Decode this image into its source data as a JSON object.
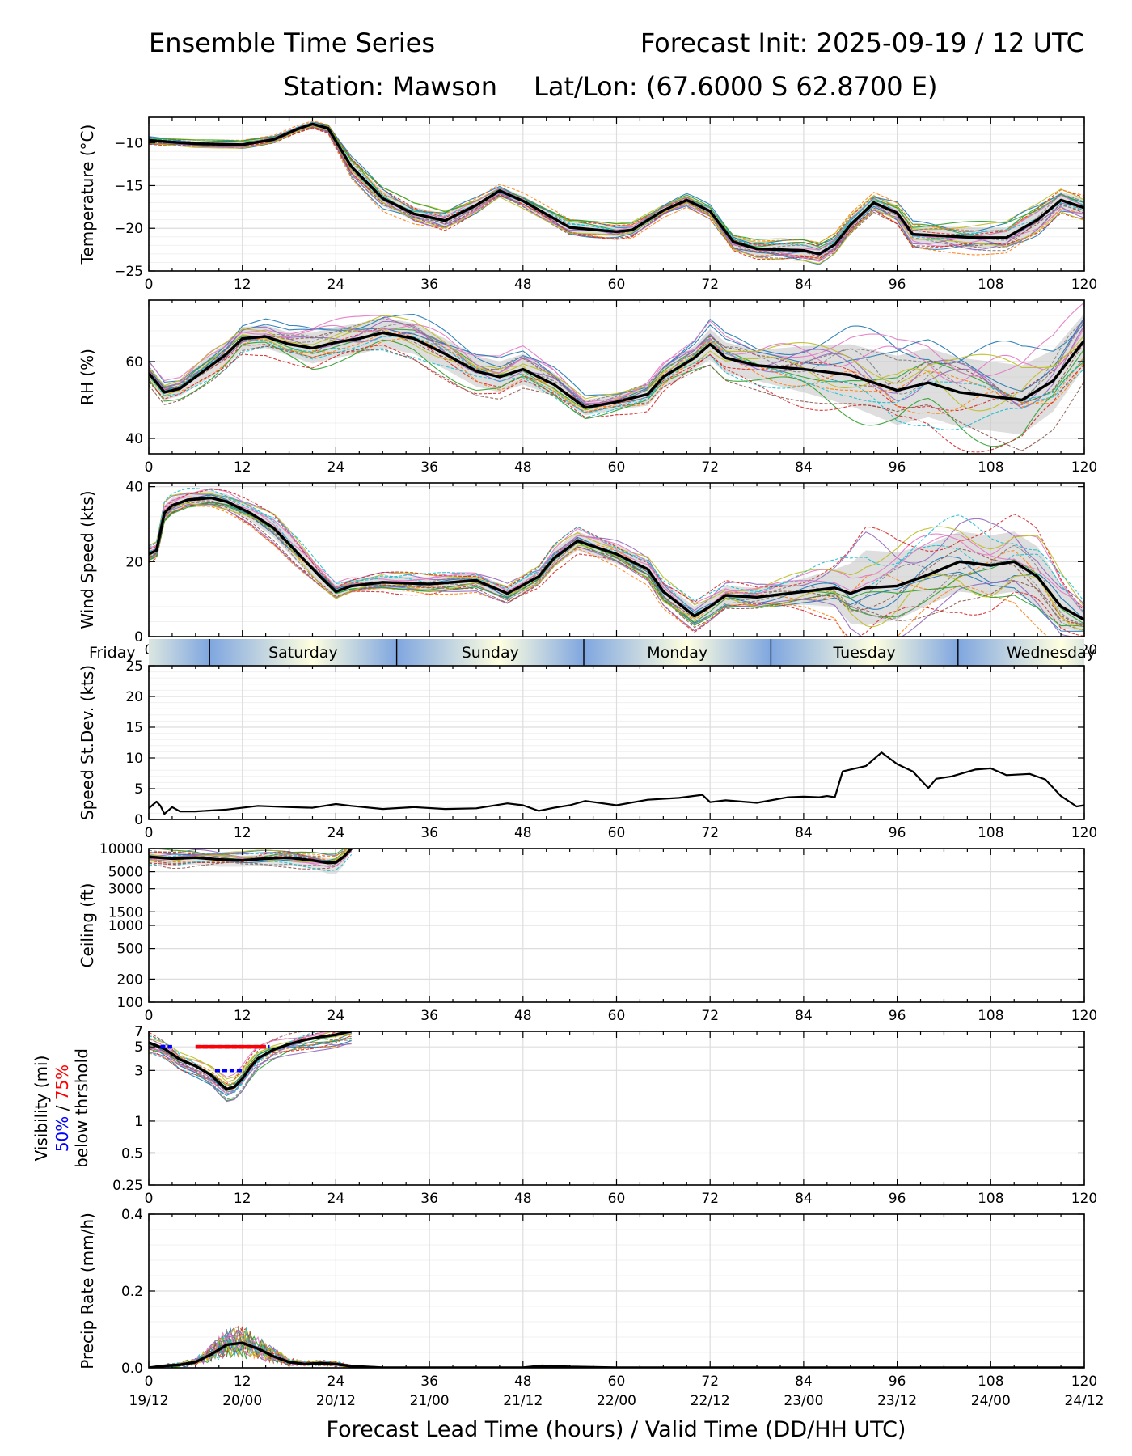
{
  "header": {
    "title_left": "Ensemble Time Series",
    "title_right": "Forecast Init: 2025-09-19 / 12 UTC",
    "station": "Station: Mawson",
    "latlon": "Lat/Lon: (67.6000 S 62.8700 E)"
  },
  "xaxis": {
    "range": [
      0,
      120
    ],
    "ticks": [
      0,
      12,
      24,
      36,
      48,
      60,
      72,
      84,
      96,
      108,
      120
    ],
    "tick_labels": [
      "0",
      "12",
      "24",
      "36",
      "48",
      "60",
      "72",
      "84",
      "96",
      "108",
      "120"
    ],
    "valid_labels": [
      "19/12",
      "20/00",
      "20/12",
      "21/00",
      "21/12",
      "22/00",
      "22/12",
      "23/00",
      "23/12",
      "24/00",
      "24/12"
    ],
    "label": "Forecast Lead Time (hours) / Valid Time (DD/HH UTC)"
  },
  "day_strip": {
    "days": [
      "Friday",
      "Saturday",
      "Sunday",
      "Monday",
      "Tuesday",
      "Wednesday"
    ],
    "midnight_hours": [
      7.8,
      31.8,
      55.8,
      79.8,
      103.8
    ],
    "label_hours": [
      -4,
      19.8,
      43.8,
      67.8,
      91.8,
      115.8
    ]
  },
  "colors": {
    "mean": "#000000",
    "spread": "#c8c8c8",
    "vis50": "#0000ff",
    "vis75": "#ff0000",
    "members": [
      "#1f77b4",
      "#ff7f0e",
      "#2ca02c",
      "#d62728",
      "#9467bd",
      "#8c564b",
      "#e377c2",
      "#7f7f7f",
      "#bcbd22",
      "#17becf"
    ]
  },
  "chart_data": [
    {
      "id": "temperature",
      "type": "line",
      "ylabel": "Temperature (°C)",
      "ylim": [
        -25,
        -7
      ],
      "yticks": [
        -25,
        -20,
        -15,
        -10
      ],
      "ytick_labels": [
        "−25",
        "−20",
        "−15",
        "−10"
      ],
      "grid": true,
      "x": [
        0,
        6,
        12,
        16,
        19,
        21,
        23,
        26,
        30,
        34,
        38,
        42,
        45,
        48,
        54,
        60,
        62,
        66,
        69,
        72,
        75,
        78,
        84,
        86,
        88,
        90,
        93,
        96,
        98,
        102,
        106,
        110,
        114,
        117,
        120
      ],
      "mean": [
        -9.7,
        -10.1,
        -10.2,
        -9.6,
        -8.4,
        -7.8,
        -8.3,
        -12.8,
        -16.5,
        -18.3,
        -19.1,
        -17.3,
        -15.6,
        -16.8,
        -19.9,
        -20.4,
        -20.2,
        -17.9,
        -16.7,
        -18.0,
        -21.6,
        -22.4,
        -22.6,
        -23.0,
        -21.9,
        -19.6,
        -17.0,
        -18.2,
        -20.7,
        -20.9,
        -21.1,
        -21.1,
        -19.0,
        -16.7,
        -17.6
      ],
      "spread": [
        0.3,
        0.3,
        0.3,
        0.3,
        0.3,
        0.3,
        0.4,
        0.8,
        0.9,
        0.8,
        0.8,
        0.6,
        0.5,
        0.6,
        0.6,
        0.6,
        0.6,
        0.5,
        0.5,
        0.6,
        0.8,
        0.8,
        0.8,
        0.8,
        0.8,
        0.8,
        0.8,
        0.9,
        1.0,
        1.1,
        1.2,
        1.2,
        1.2,
        1.0,
        1.0
      ]
    },
    {
      "id": "rh",
      "type": "line",
      "ylabel": "RH (%)",
      "ylim": [
        36,
        76
      ],
      "yticks": [
        40,
        60
      ],
      "ytick_labels": [
        "40",
        "60"
      ],
      "grid": true,
      "x": [
        0,
        2,
        4,
        8,
        10,
        12,
        15,
        18,
        21,
        24,
        27,
        30,
        34,
        38,
        42,
        45,
        48,
        52,
        56,
        60,
        64,
        66,
        70,
        72,
        74,
        78,
        84,
        90,
        96,
        100,
        104,
        108,
        112,
        116,
        120
      ],
      "mean": [
        57,
        52,
        53,
        59,
        62,
        66,
        66.5,
        64.5,
        63.5,
        65,
        66,
        67.5,
        66,
        62,
        57.5,
        56,
        58,
        54,
        48,
        49.5,
        51.5,
        56,
        61,
        64.5,
        61,
        59,
        58,
        56.5,
        52.5,
        54.5,
        52,
        51,
        50,
        55,
        65.5
      ],
      "spread": [
        2,
        2,
        2,
        3,
        3,
        3,
        3,
        3,
        4,
        4,
        4,
        4,
        4,
        4,
        4,
        4,
        4,
        3,
        2,
        2,
        3,
        3,
        3,
        4,
        4,
        4,
        6,
        8,
        9,
        9,
        9,
        9,
        9,
        8,
        7
      ]
    },
    {
      "id": "wind",
      "type": "line",
      "ylabel": "Wind Speed (kts)",
      "ylim": [
        0,
        41
      ],
      "yticks": [
        0,
        20,
        40
      ],
      "ytick_labels": [
        "0",
        "20",
        "40"
      ],
      "grid": true,
      "x": [
        0,
        1,
        2,
        3,
        5,
        8,
        10,
        13,
        16,
        19,
        22,
        24,
        26,
        30,
        36,
        42,
        46,
        50,
        52,
        55,
        60,
        64,
        66,
        70,
        72,
        74,
        78,
        84,
        88,
        90,
        92,
        96,
        100,
        104,
        108,
        111,
        114,
        117,
        120
      ],
      "mean": [
        22,
        23,
        33,
        35,
        36.5,
        37,
        36,
        33,
        29,
        22.5,
        16,
        12,
        13.5,
        14.5,
        14,
        15,
        11.5,
        16,
        21,
        25.5,
        22,
        18,
        12,
        5.5,
        8,
        11,
        10.5,
        12,
        13,
        11.5,
        13,
        13.5,
        16.5,
        20,
        19,
        20,
        16,
        8,
        4.5
      ],
      "spread": [
        1.5,
        1.5,
        2,
        2,
        2,
        2,
        2,
        2,
        2.5,
        2.5,
        2,
        1.8,
        1.8,
        1.8,
        1.8,
        1.8,
        1.8,
        1.8,
        2.2,
        2.5,
        2.5,
        2.5,
        2.5,
        2.5,
        2.5,
        2.5,
        2.5,
        3.5,
        5,
        8,
        10,
        9,
        8,
        8,
        8,
        8,
        8,
        6,
        3
      ]
    },
    {
      "id": "speed_stdev",
      "type": "line",
      "ylabel": "Speed St.Dev. (kts)",
      "ylim": [
        0,
        25
      ],
      "yticks": [
        0,
        5,
        10,
        15,
        20,
        25
      ],
      "ytick_labels": [
        "0",
        "5",
        "10",
        "15",
        "20",
        "25"
      ],
      "grid": true,
      "x": [
        0,
        1,
        1.5,
        2,
        3,
        4,
        6,
        10,
        14,
        18,
        21,
        24,
        26,
        30,
        34,
        38,
        42,
        46,
        48,
        50,
        52,
        54,
        56,
        60,
        64,
        68,
        71,
        72,
        74,
        78,
        82,
        84,
        86,
        87,
        88,
        89,
        92,
        94,
        96,
        98,
        100,
        101,
        103,
        106,
        108,
        110,
        113,
        115,
        117,
        119,
        120
      ],
      "values": [
        1.8,
        2.9,
        2.2,
        0.9,
        2.0,
        1.3,
        1.3,
        1.6,
        2.2,
        2.0,
        1.9,
        2.5,
        2.2,
        1.7,
        2.0,
        1.7,
        1.8,
        2.6,
        2.3,
        1.4,
        1.9,
        2.3,
        3.0,
        2.3,
        3.2,
        3.5,
        4.0,
        2.8,
        3.1,
        2.7,
        3.6,
        3.7,
        3.6,
        3.8,
        3.6,
        7.8,
        8.7,
        10.9,
        9.0,
        7.8,
        5.1,
        6.6,
        7.0,
        8.1,
        8.3,
        7.2,
        7.4,
        6.5,
        3.8,
        2.1,
        2.3
      ]
    },
    {
      "id": "ceiling",
      "type": "line",
      "ylabel": "Ceiling (ft)",
      "scale": "log",
      "ylim": [
        100,
        10000
      ],
      "yticks": [
        100,
        200,
        500,
        1000,
        1500,
        3000,
        5000,
        10000
      ],
      "ytick_labels": [
        "100",
        "200",
        "500",
        "1000",
        "1500",
        "3000",
        "5000",
        "10000"
      ],
      "grid": true,
      "x": [
        0,
        3,
        6,
        9,
        12,
        15,
        18,
        21,
        23,
        24,
        25,
        26
      ],
      "mean": [
        7800,
        7400,
        7600,
        7200,
        7000,
        7400,
        7600,
        7000,
        6500,
        6600,
        7800,
        10000
      ],
      "spread_low": [
        6500,
        6000,
        6200,
        5800,
        5800,
        6000,
        6000,
        5500,
        4700,
        4600,
        6000,
        10000
      ]
    },
    {
      "id": "visibility",
      "type": "line",
      "ylabel": "Visibility (mi)",
      "ylabel2_parts": [
        "50%",
        " / ",
        "75%"
      ],
      "ylabel3": "below thrshold",
      "scale": "log",
      "ylim": [
        0.25,
        7
      ],
      "yticks": [
        0.25,
        0.5,
        1,
        3,
        5,
        7
      ],
      "ytick_labels": [
        "0.25",
        "0.5",
        "1",
        "3",
        "5",
        "7"
      ],
      "grid": true,
      "x": [
        0,
        2,
        4,
        6,
        8,
        9,
        10,
        11,
        12,
        13,
        14,
        16,
        18,
        20,
        22,
        24,
        25,
        26
      ],
      "mean": [
        5.5,
        4.8,
        3.8,
        3.3,
        2.7,
        2.3,
        2.0,
        2.1,
        2.5,
        3.2,
        3.9,
        4.7,
        5.3,
        5.8,
        6.2,
        6.5,
        6.8,
        7
      ],
      "thresholds": [
        {
          "pct": "50%",
          "value": 5,
          "start": 1.5,
          "end": 3
        },
        {
          "pct": "50%",
          "value": 5,
          "start": 6,
          "end": 15.5
        },
        {
          "pct": "75%",
          "value": 5,
          "start": 6,
          "end": 15
        },
        {
          "pct": "50%",
          "value": 3,
          "start": 8.5,
          "end": 12
        }
      ]
    },
    {
      "id": "precip",
      "type": "line",
      "ylabel": "Precip Rate (mm/h)",
      "ylim": [
        0,
        0.4
      ],
      "yticks": [
        0,
        0.2,
        0.4
      ],
      "ytick_labels": [
        "0.0",
        "0.2",
        "0.4"
      ],
      "grid": true,
      "x": [
        0,
        2,
        4,
        6,
        8,
        10,
        12,
        14,
        16,
        18,
        20,
        22,
        24,
        26,
        28,
        30,
        36,
        48,
        50,
        52,
        54,
        60,
        120
      ],
      "mean": [
        0.0,
        0.005,
        0.008,
        0.015,
        0.035,
        0.06,
        0.065,
        0.05,
        0.03,
        0.015,
        0.01,
        0.012,
        0.01,
        0.004,
        0.002,
        0.0,
        0.0,
        0.0,
        0.004,
        0.004,
        0.002,
        0.0,
        0.0
      ]
    }
  ]
}
